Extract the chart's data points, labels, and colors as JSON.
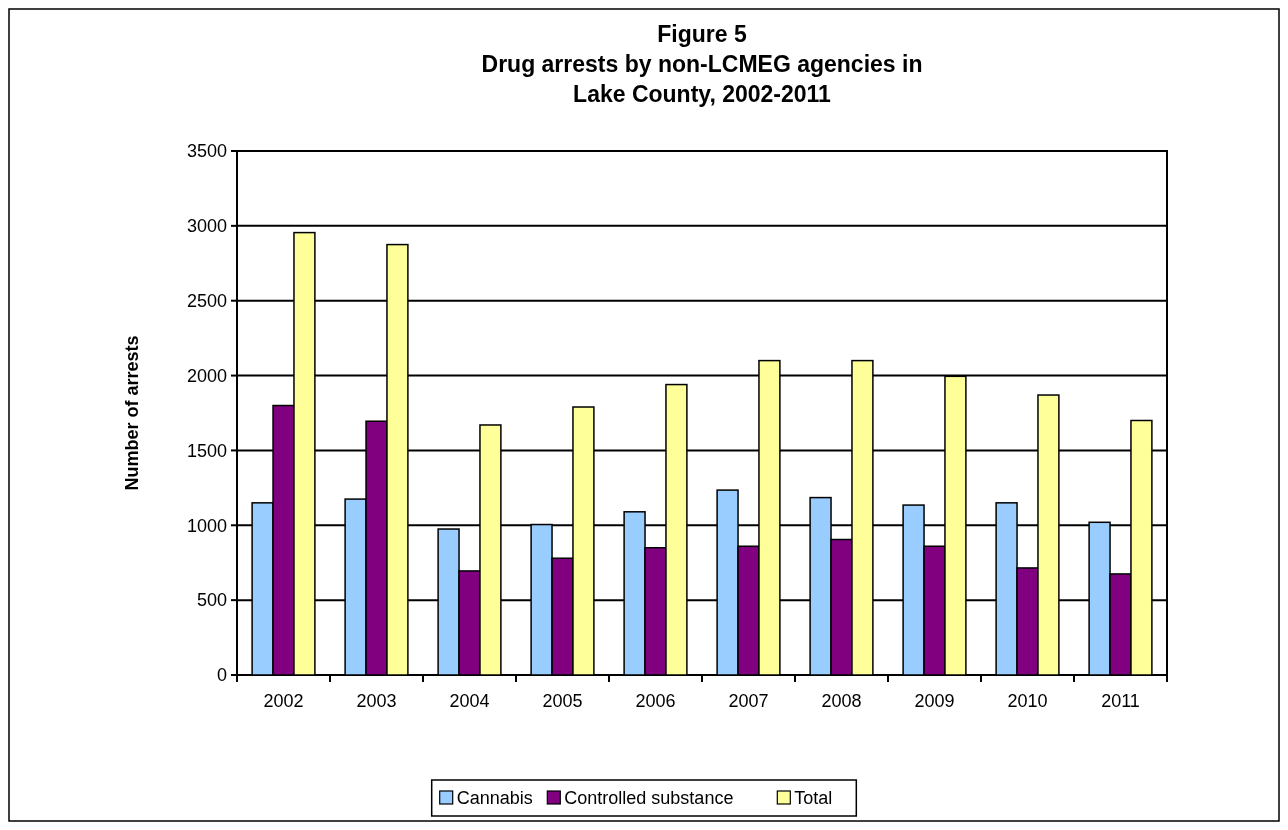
{
  "chart_data": {
    "type": "bar",
    "title": "Figure 5\nDrug arrests by non-LCMEG agencies in\nLake County, 2002-2011",
    "ylabel": "Number of arrests",
    "categories": [
      "2002",
      "2003",
      "2004",
      "2005",
      "2006",
      "2007",
      "2008",
      "2009",
      "2010",
      "2011"
    ],
    "series": [
      {
        "name": "Cannabis",
        "color": "#99ccff",
        "values": [
          1150,
          1175,
          975,
          1005,
          1090,
          1235,
          1185,
          1135,
          1150,
          1020
        ]
      },
      {
        "name": "Controlled substance",
        "color": "#800080",
        "values": [
          1800,
          1695,
          695,
          780,
          850,
          860,
          905,
          860,
          715,
          675
        ]
      },
      {
        "name": "Total",
        "color": "#ffff99",
        "values": [
          2955,
          2875,
          1670,
          1790,
          1940,
          2100,
          2100,
          1995,
          1870,
          1700
        ]
      }
    ],
    "ylim": [
      0,
      3500
    ],
    "yticks": [
      0,
      500,
      1000,
      1500,
      2000,
      2500,
      3000,
      3500
    ],
    "grid": "y",
    "legend": "bottom"
  }
}
